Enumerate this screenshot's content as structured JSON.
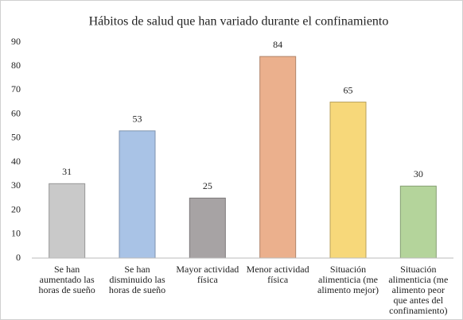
{
  "chart_data": {
    "type": "bar",
    "title": "Hábitos de salud que han variado durante el confinamiento",
    "categories": [
      "Se han aumentado las horas de sueño",
      "Se han disminuido las horas de sueño",
      "Mayor actividad física",
      "Menor actividad física",
      "Situación alimenticia (me alimento mejor)",
      "Situación alimenticia (me alimento peor que antes del confinamiento)"
    ],
    "values": [
      31,
      53,
      25,
      84,
      65,
      30
    ],
    "colors": [
      "#c9c9c9",
      "#a9c3e6",
      "#a7a3a4",
      "#ebb08d",
      "#f7d87a",
      "#b4d49b"
    ],
    "ylim": [
      0,
      90
    ],
    "yticks": [
      0,
      10,
      20,
      30,
      40,
      50,
      60,
      70,
      80,
      90
    ],
    "grid": false
  }
}
